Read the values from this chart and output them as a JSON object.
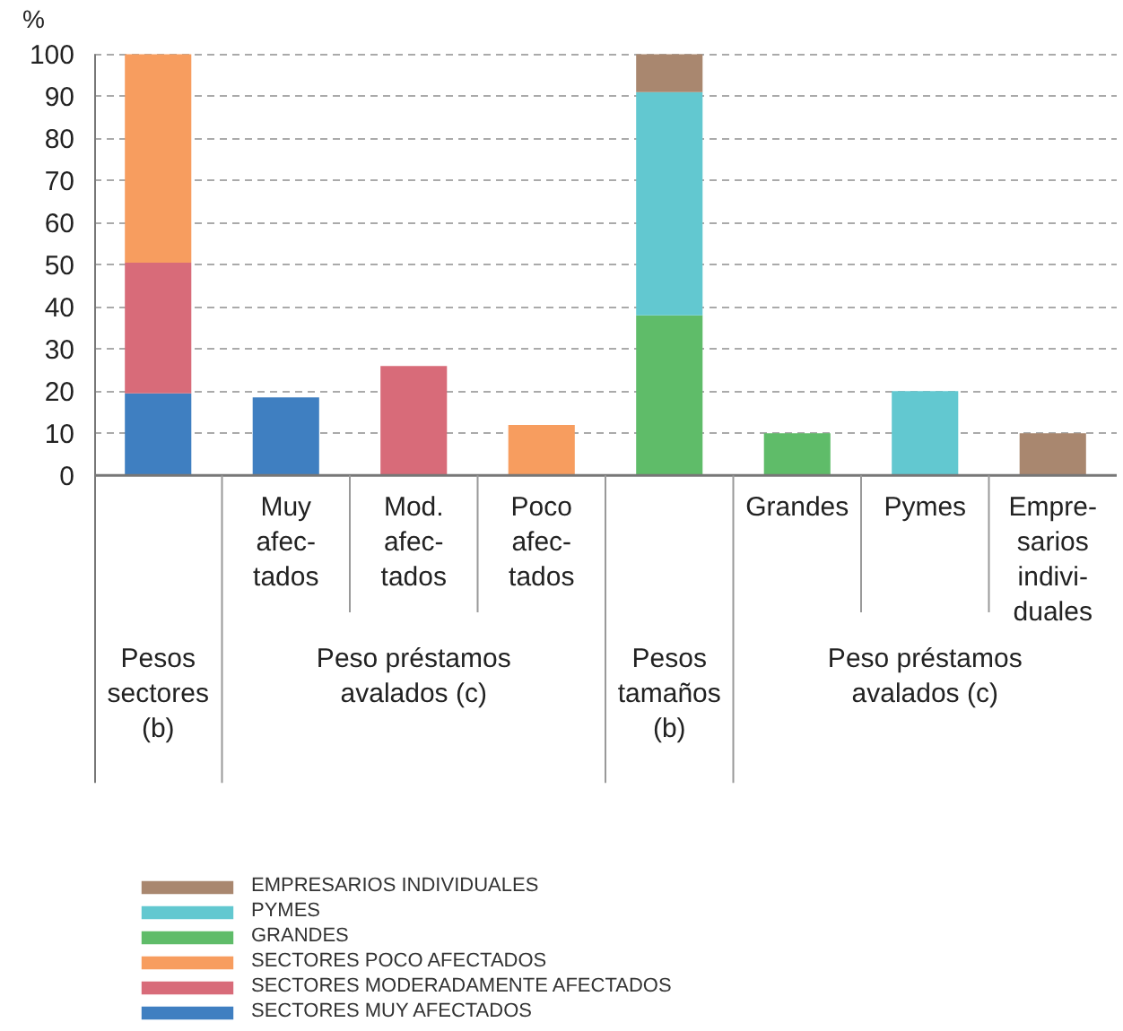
{
  "chart_data": {
    "type": "bar",
    "stacked": true,
    "ylabel": "%",
    "categories": [
      null,
      "Muy\nafec-\ntados",
      "Mod.\nafec-\ntados",
      "Poco\nafec-\ntados",
      null,
      "Grandes",
      "Pymes",
      "Empre-\nsarios\nindivi-\nduales"
    ],
    "series": [
      {
        "name": "SECTORES MUY AFECTADOS",
        "color": "#3f7fc1",
        "values": [
          19.5,
          18.5,
          null,
          null,
          null,
          null,
          null,
          null
        ]
      },
      {
        "name": "SECTORES MODERADAMENTE AFECTADOS",
        "color": "#d86b79",
        "values": [
          31,
          null,
          26,
          null,
          null,
          null,
          null,
          null
        ]
      },
      {
        "name": "SECTORES POCO AFECTADOS",
        "color": "#f79d5f",
        "values": [
          49.5,
          null,
          null,
          12,
          null,
          null,
          null,
          null
        ]
      },
      {
        "name": "GRANDES",
        "color": "#5fbc69",
        "values": [
          null,
          null,
          null,
          null,
          38,
          10,
          null,
          null
        ]
      },
      {
        "name": "PYMES",
        "color": "#62c8d0",
        "values": [
          null,
          null,
          null,
          null,
          53,
          null,
          20,
          null
        ]
      },
      {
        "name": "EMPRESARIOS INDIVIDUALES",
        "color": "#a9876f",
        "values": [
          null,
          null,
          null,
          null,
          9,
          null,
          null,
          10
        ]
      }
    ],
    "annotations": [
      "Pesos\nsectores\n(b)",
      "Peso préstamos\navalados (c)",
      "Pesos\ntamaños\n(b)",
      "Peso préstamos\navalados (c)"
    ],
    "ylim": [
      0,
      100
    ],
    "yticks": [
      0,
      10,
      20,
      30,
      40,
      50,
      60,
      70,
      80,
      90,
      100
    ],
    "grid": "y",
    "legend": "bottom"
  }
}
